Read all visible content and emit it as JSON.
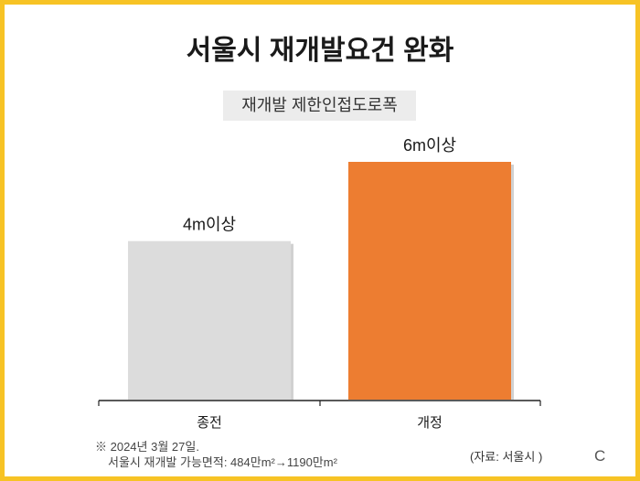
{
  "title": "서울시 재개발요건 완화",
  "note": {
    "line1": "※ 2024년 3월 27일.",
    "line2": "서울시 재개발 가능면적: 484만m²→1190만m²"
  },
  "source": "(자료: 서울시 )",
  "logo_text": "C",
  "colors": {
    "border": "#f7c325",
    "bar_before": "#dcdcdc",
    "bar_after": "#ed7d31"
  },
  "chart_data": {
    "type": "bar",
    "title": "재개발 제한인접도로폭",
    "categories": [
      "종전",
      "개정"
    ],
    "values": [
      4,
      6
    ],
    "value_labels": [
      "4m이상",
      "6m이상"
    ],
    "unit": "m",
    "ylim": [
      0,
      6.5
    ],
    "grid": false,
    "legend": "none"
  }
}
